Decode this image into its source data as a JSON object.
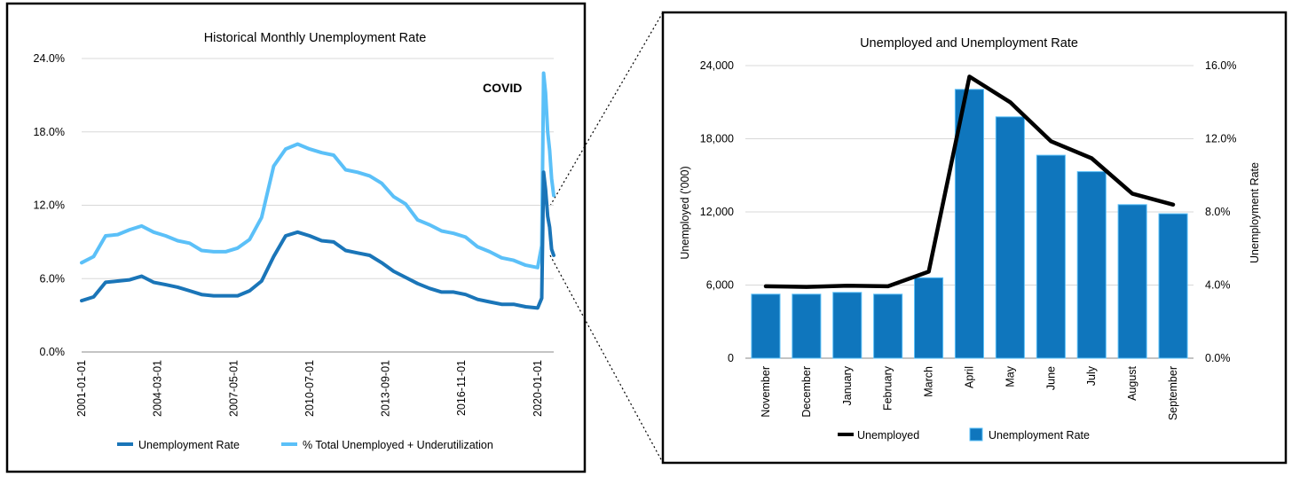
{
  "chart_data": [
    {
      "type": "line",
      "title": "Historical Monthly Unemployment Rate",
      "xlabel": "",
      "ylabel": "",
      "ylim": [
        0,
        24
      ],
      "yticks": [
        "0.0%",
        "6.0%",
        "12.0%",
        "18.0%",
        "24.0%"
      ],
      "x_tick_labels": [
        "2001-01-01",
        "2004-03-01",
        "2007-05-01",
        "2010-07-01",
        "2013-09-01",
        "2016-11-01",
        "2020-01-01"
      ],
      "annotation": "COVID",
      "legend_position": "bottom",
      "grid": true,
      "series": [
        {
          "name": "Unemployment Rate",
          "color": "#1a75b8",
          "points": [
            [
              2001.0,
              4.2
            ],
            [
              2001.5,
              4.5
            ],
            [
              2002.0,
              5.7
            ],
            [
              2002.5,
              5.8
            ],
            [
              2003.0,
              5.9
            ],
            [
              2003.5,
              6.2
            ],
            [
              2004.0,
              5.7
            ],
            [
              2004.5,
              5.5
            ],
            [
              2005.0,
              5.3
            ],
            [
              2005.5,
              5.0
            ],
            [
              2006.0,
              4.7
            ],
            [
              2006.5,
              4.6
            ],
            [
              2007.0,
              4.6
            ],
            [
              2007.5,
              4.6
            ],
            [
              2008.0,
              5.0
            ],
            [
              2008.5,
              5.8
            ],
            [
              2009.0,
              7.8
            ],
            [
              2009.5,
              9.5
            ],
            [
              2010.0,
              9.8
            ],
            [
              2010.5,
              9.5
            ],
            [
              2011.0,
              9.1
            ],
            [
              2011.5,
              9.0
            ],
            [
              2012.0,
              8.3
            ],
            [
              2012.5,
              8.1
            ],
            [
              2013.0,
              7.9
            ],
            [
              2013.5,
              7.3
            ],
            [
              2014.0,
              6.6
            ],
            [
              2014.5,
              6.1
            ],
            [
              2015.0,
              5.6
            ],
            [
              2015.5,
              5.2
            ],
            [
              2016.0,
              4.9
            ],
            [
              2016.5,
              4.9
            ],
            [
              2017.0,
              4.7
            ],
            [
              2017.5,
              4.3
            ],
            [
              2018.0,
              4.1
            ],
            [
              2018.5,
              3.9
            ],
            [
              2019.0,
              3.9
            ],
            [
              2019.5,
              3.7
            ],
            [
              2020.0,
              3.6
            ],
            [
              2020.17,
              4.4
            ],
            [
              2020.25,
              14.7
            ],
            [
              2020.33,
              13.3
            ],
            [
              2020.42,
              11.1
            ],
            [
              2020.5,
              10.2
            ],
            [
              2020.58,
              8.4
            ],
            [
              2020.67,
              7.9
            ]
          ]
        },
        {
          "name": "% Total Unemployed + Underutilization",
          "color": "#5bc0f8",
          "points": [
            [
              2001.0,
              7.3
            ],
            [
              2001.5,
              7.8
            ],
            [
              2002.0,
              9.5
            ],
            [
              2002.5,
              9.6
            ],
            [
              2003.0,
              10.0
            ],
            [
              2003.5,
              10.3
            ],
            [
              2004.0,
              9.8
            ],
            [
              2004.5,
              9.5
            ],
            [
              2005.0,
              9.1
            ],
            [
              2005.5,
              8.9
            ],
            [
              2006.0,
              8.3
            ],
            [
              2006.5,
              8.2
            ],
            [
              2007.0,
              8.2
            ],
            [
              2007.5,
              8.5
            ],
            [
              2008.0,
              9.2
            ],
            [
              2008.5,
              11.0
            ],
            [
              2009.0,
              15.2
            ],
            [
              2009.5,
              16.6
            ],
            [
              2010.0,
              17.0
            ],
            [
              2010.5,
              16.6
            ],
            [
              2011.0,
              16.3
            ],
            [
              2011.5,
              16.1
            ],
            [
              2012.0,
              14.9
            ],
            [
              2012.5,
              14.7
            ],
            [
              2013.0,
              14.4
            ],
            [
              2013.5,
              13.8
            ],
            [
              2014.0,
              12.7
            ],
            [
              2014.5,
              12.1
            ],
            [
              2015.0,
              10.8
            ],
            [
              2015.5,
              10.4
            ],
            [
              2016.0,
              9.9
            ],
            [
              2016.5,
              9.7
            ],
            [
              2017.0,
              9.4
            ],
            [
              2017.5,
              8.6
            ],
            [
              2018.0,
              8.2
            ],
            [
              2018.5,
              7.7
            ],
            [
              2019.0,
              7.5
            ],
            [
              2019.5,
              7.1
            ],
            [
              2020.0,
              6.9
            ],
            [
              2020.17,
              8.7
            ],
            [
              2020.25,
              22.8
            ],
            [
              2020.33,
              21.2
            ],
            [
              2020.42,
              18.0
            ],
            [
              2020.5,
              16.5
            ],
            [
              2020.58,
              14.2
            ],
            [
              2020.67,
              12.8
            ]
          ]
        }
      ]
    },
    {
      "type": "bar",
      "title": "Unemployed and Unemployment Rate",
      "categories": [
        "November",
        "December",
        "January",
        "February",
        "March",
        "April",
        "May",
        "June",
        "July",
        "August",
        "September"
      ],
      "ylabel": "Unemployed ('000)",
      "y2label": "Unemployment Rate",
      "ylim": [
        0,
        24000
      ],
      "y2lim": [
        0,
        16
      ],
      "yticks": [
        "0",
        "6,000",
        "12,000",
        "18,000",
        "24,000"
      ],
      "y2ticks": [
        "0.0%",
        "4.0%",
        "8.0%",
        "12.0%",
        "16.0%"
      ],
      "legend_position": "bottom",
      "grid": true,
      "series": [
        {
          "name": "Unemployment Rate",
          "kind": "bar",
          "axis": "right",
          "color": "#0f76bd",
          "values": [
            3.5,
            3.5,
            3.6,
            3.5,
            4.4,
            14.7,
            13.2,
            11.1,
            10.2,
            8.4,
            7.9
          ]
        },
        {
          "name": "Unemployed",
          "kind": "line",
          "axis": "left",
          "color": "#000000",
          "values": [
            5900,
            5850,
            5950,
            5900,
            7100,
            23100,
            21000,
            17800,
            16400,
            13500,
            12600
          ]
        }
      ]
    }
  ]
}
